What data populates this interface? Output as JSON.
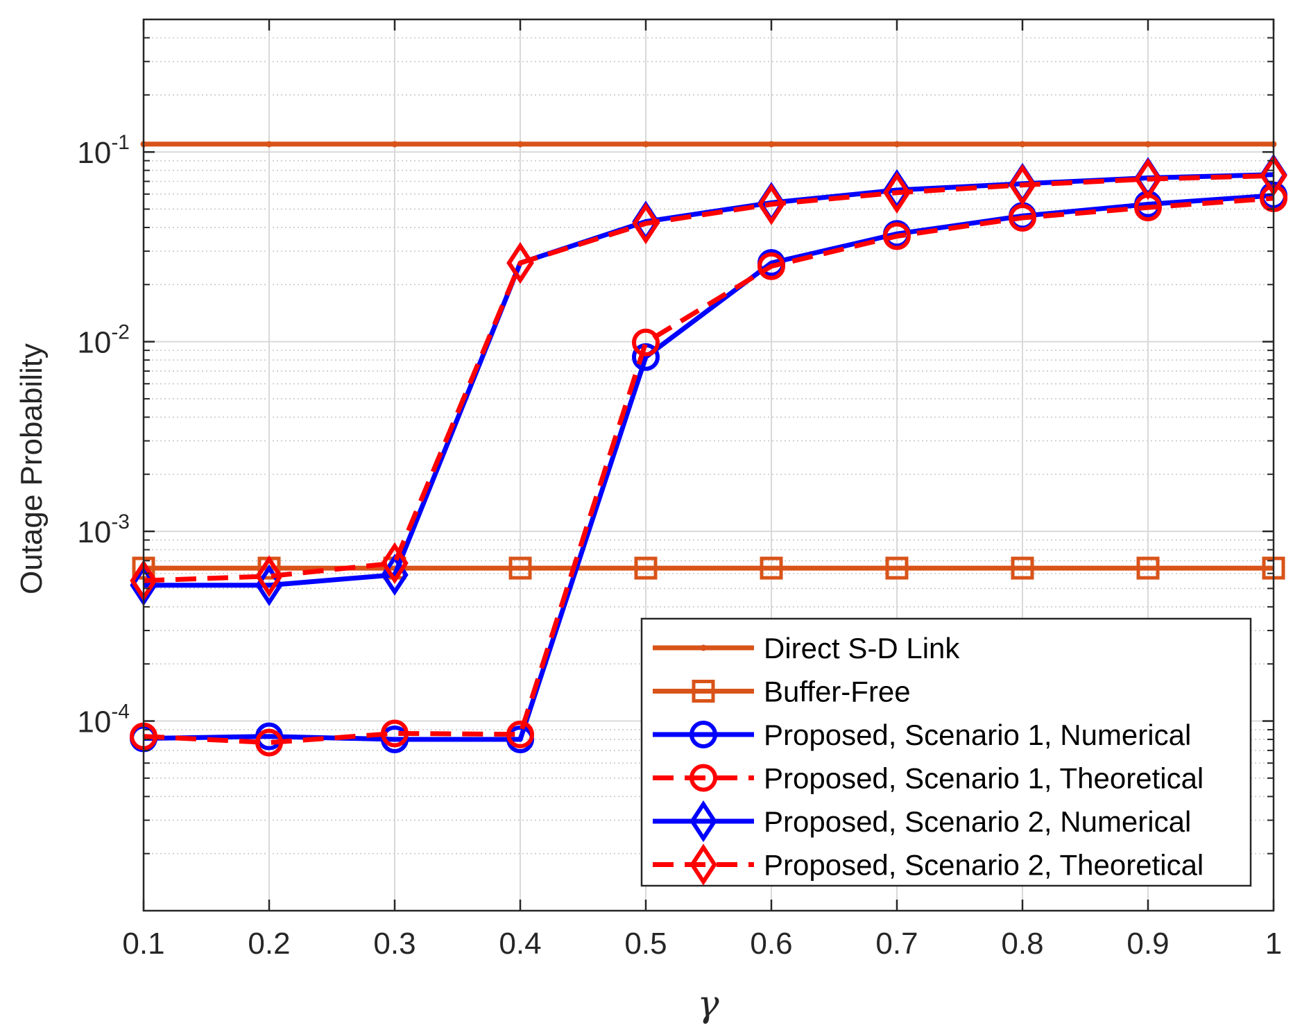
{
  "chart_data": {
    "type": "line",
    "xlabel": "γ",
    "ylabel": "Outage Probability",
    "xscale": "linear",
    "yscale": "log",
    "xlim": [
      0.1,
      1
    ],
    "ylim": [
      1e-05,
      0.5
    ],
    "x_ticks": [
      "0.1",
      "0.2",
      "0.3",
      "0.4",
      "0.5",
      "0.6",
      "0.7",
      "0.8",
      "0.9",
      "1"
    ],
    "y_ticks": [
      {
        "base": "10",
        "exp": "-4",
        "value": 0.0001
      },
      {
        "base": "10",
        "exp": "-3",
        "value": 0.001
      },
      {
        "base": "10",
        "exp": "-2",
        "value": 0.01
      },
      {
        "base": "10",
        "exp": "-1",
        "value": 0.1
      }
    ],
    "grid": true,
    "legend_position": "bottom-right",
    "x": [
      0.1,
      0.2,
      0.3,
      0.4,
      0.5,
      0.6,
      0.7,
      0.8,
      0.9,
      1.0
    ],
    "series": [
      {
        "name": "Direct S-D Link",
        "color": "#D95319",
        "line": "solid",
        "marker": "dot",
        "values": [
          0.11,
          0.11,
          0.11,
          0.11,
          0.11,
          0.11,
          0.11,
          0.11,
          0.11,
          0.11
        ]
      },
      {
        "name": "Buffer-Free",
        "color": "#D95319",
        "line": "solid",
        "marker": "square",
        "values": [
          0.00064,
          0.00064,
          0.00064,
          0.00064,
          0.00064,
          0.00064,
          0.00064,
          0.00064,
          0.00064,
          0.00064
        ]
      },
      {
        "name": "Proposed, Scenario 1, Numerical",
        "color": "#0000FF",
        "line": "solid",
        "marker": "circle",
        "values": [
          8.1e-05,
          8.3e-05,
          8e-05,
          8e-05,
          0.0083,
          0.026,
          0.037,
          0.046,
          0.053,
          0.059
        ]
      },
      {
        "name": "Proposed, Scenario 1, Theoretical",
        "color": "#FF0000",
        "line": "dashed",
        "marker": "circle",
        "values": [
          8.3e-05,
          7.7e-05,
          8.6e-05,
          8.5e-05,
          0.0099,
          0.025,
          0.036,
          0.045,
          0.051,
          0.057
        ]
      },
      {
        "name": "Proposed, Scenario 2, Numerical",
        "color": "#0000FF",
        "line": "solid",
        "marker": "diamond",
        "values": [
          0.00052,
          0.00052,
          0.00059,
          0.026,
          0.043,
          0.054,
          0.063,
          0.068,
          0.073,
          0.076
        ]
      },
      {
        "name": "Proposed, Scenario 2, Theoretical",
        "color": "#FF0000",
        "line": "dashed",
        "marker": "diamond",
        "values": [
          0.00055,
          0.00058,
          0.00068,
          0.026,
          0.042,
          0.053,
          0.061,
          0.067,
          0.072,
          0.075
        ]
      }
    ]
  }
}
